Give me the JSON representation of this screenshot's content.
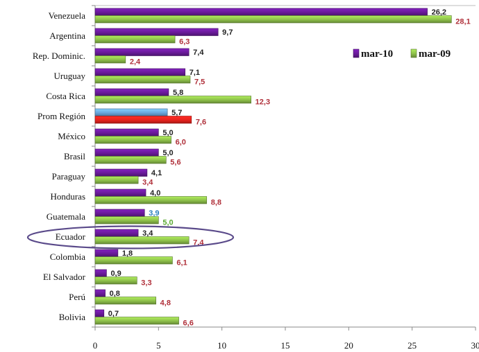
{
  "chart_data": {
    "type": "bar",
    "orientation": "horizontal",
    "categories": [
      "Venezuela",
      "Argentina",
      "Rep. Dominic.",
      "Uruguay",
      "Costa Rica",
      "Prom Región",
      "México",
      "Brasil",
      "Paraguay",
      "Honduras",
      "Guatemala",
      "Ecuador",
      "Colombia",
      "El Salvador",
      "Perú",
      "Bolivia"
    ],
    "series": [
      {
        "name": "mar-10",
        "values": [
          26.2,
          9.7,
          7.4,
          7.1,
          5.8,
          5.7,
          5.0,
          5.0,
          4.1,
          4.0,
          3.9,
          3.4,
          1.8,
          0.9,
          0.8,
          0.7
        ],
        "labels": [
          "26,2",
          "9,7",
          "7,4",
          "7,1",
          "5,8",
          "5,7",
          "5,0",
          "5,0",
          "4,1",
          "4,0",
          "3,9",
          "3,4",
          "1,8",
          "0,9",
          "0,8",
          "0,7"
        ],
        "color": "#6a1b9a"
      },
      {
        "name": "mar-09",
        "values": [
          28.1,
          6.3,
          2.4,
          7.5,
          12.3,
          7.6,
          6.0,
          5.6,
          3.4,
          8.8,
          5.0,
          7.4,
          6.1,
          3.3,
          4.8,
          6.6
        ],
        "labels": [
          "28,1",
          "6,3",
          "2,4",
          "7,5",
          "12,3",
          "7,6",
          "6,0",
          "5,6",
          "3,4",
          "8,8",
          "5,0",
          "7,4",
          "6,1",
          "3,3",
          "4,8",
          "6,6"
        ],
        "color": "#8dbf4a"
      }
    ],
    "highlight": {
      "category": "Prom Región",
      "colors": [
        "#6aa6dc",
        "#e8231d"
      ]
    },
    "circled_category": "Ecuador",
    "xlim": [
      0,
      30
    ],
    "xticks": [
      0,
      5,
      10,
      15,
      20,
      25,
      30
    ],
    "legend": {
      "position": "top-right",
      "entries": [
        "mar-10",
        "mar-09"
      ]
    },
    "title": "",
    "xlabel": "",
    "ylabel": "",
    "colors": {
      "bar_label_mar10": "#222222",
      "bar_label_mar09": "#b0303a",
      "guatemala_label_mar10": "#2a7fbf",
      "guatemala_label_mar09": "#5aa832",
      "ellipse": "#5a4a8a"
    }
  }
}
